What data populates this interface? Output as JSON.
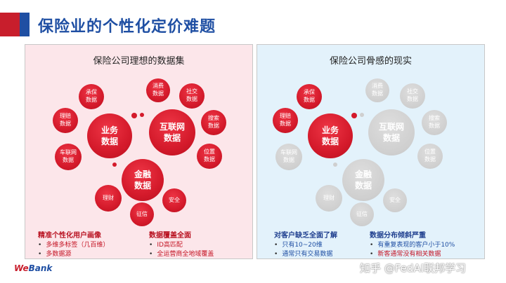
{
  "title": "保险业的个性化定价难题",
  "left_panel": {
    "title": "保险公司理想的数据集",
    "bubbles": {
      "business": "业务\n数据",
      "internet": "互联网\n数据",
      "finance": "金融\n数据",
      "underwriting": "承保\n数据",
      "claims": "理赔\n数据",
      "vehicle": "车联网\n数据",
      "consumption": "消费\n数据",
      "social": "社交\n数据",
      "search": "搜索\n数据",
      "location": "位置\n数据",
      "wealth": "理财",
      "credit": "征信",
      "security": "安全"
    },
    "note1": {
      "title": "精准个性化用户画像",
      "items": [
        "多维多标签（几百维）",
        "多数据源"
      ]
    },
    "note2": {
      "title": "数据覆盖全面",
      "items": [
        "ID高匹配",
        "全运营商全地域覆盖"
      ]
    }
  },
  "right_panel": {
    "title": "保险公司骨感的现实",
    "bubbles": {
      "business": "业务\n数据",
      "internet": "互联网\n数据",
      "finance": "金融\n数据",
      "underwriting": "承保\n数据",
      "claims": "理赔\n数据",
      "vehicle": "车联网\n数据",
      "consumption": "消费\n数据",
      "social": "社交\n数据",
      "search": "搜索\n数据",
      "location": "位置\n数据",
      "wealth": "理财",
      "credit": "征信",
      "security": "安全"
    },
    "note1": {
      "title": "对客户缺乏全面了解",
      "items": [
        "只有10~20维",
        "通常只有交易数据"
      ]
    },
    "note2": {
      "title": "数据分布倾斜严重",
      "items": [
        "有重复表现的客户小于10%",
        "新客通常没有相关数据"
      ]
    }
  },
  "logo": {
    "mark": "We",
    "text": "Bank"
  },
  "watermark": "知乎 @FedAI联邦学习",
  "colors": {
    "brand_red": "#c81e2c",
    "brand_blue": "#1f4fa3",
    "left_bg": "#fce6ea",
    "right_bg": "#e3f2fb",
    "inactive_grey": "#cfcfcf"
  }
}
